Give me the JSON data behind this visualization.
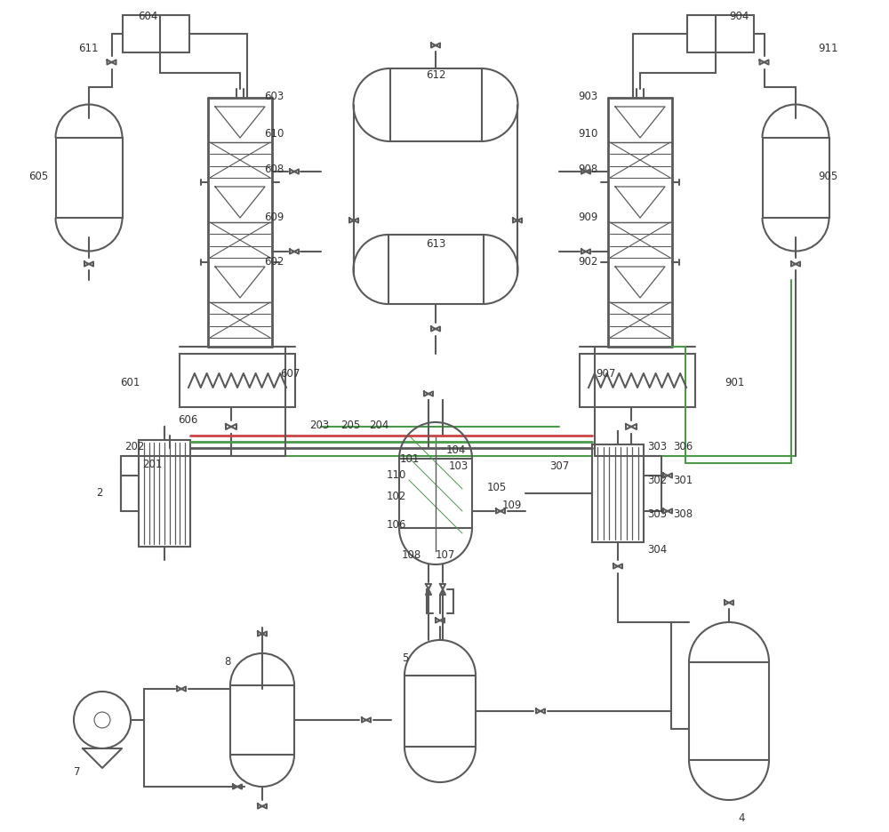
{
  "bg_color": "#ffffff",
  "line_color": "#5a5a5a",
  "line_width": 1.5,
  "green_color": "#4a9a4a",
  "red_color": "#cc4444",
  "label_fontsize": 8.5,
  "label_color": "#333333"
}
